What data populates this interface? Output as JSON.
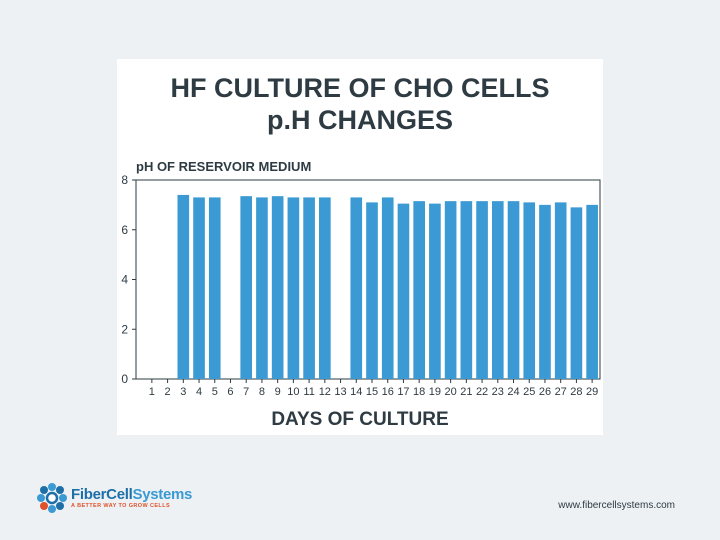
{
  "chart_data": {
    "type": "bar",
    "title_line1": "HF CULTURE OF CHO CELLS",
    "title_line2": "p.H CHANGES",
    "ylabel": "pH OF RESERVOIR MEDIUM",
    "xlabel": "DAYS OF CULTURE",
    "ylim": [
      0,
      8
    ],
    "yticks": [
      0,
      2,
      4,
      6,
      8
    ],
    "categories": [
      "1",
      "2",
      "3",
      "4",
      "5",
      "6",
      "7",
      "8",
      "9",
      "10",
      "11",
      "12",
      "13",
      "14",
      "15",
      "16",
      "17",
      "18",
      "19",
      "20",
      "21",
      "22",
      "23",
      "24",
      "25",
      "26",
      "27",
      "28",
      "29"
    ],
    "values": [
      0,
      0,
      7.4,
      7.3,
      7.3,
      0,
      7.35,
      7.3,
      7.35,
      7.3,
      7.3,
      7.3,
      0,
      7.3,
      7.1,
      7.3,
      7.05,
      7.15,
      7.05,
      7.15,
      7.15,
      7.15,
      7.15,
      7.15,
      7.1,
      7.0,
      7.1,
      6.9,
      7.0
    ],
    "bar_color": "#3b9ad3",
    "grid": false
  },
  "footer": {
    "brand_part1": "FiberCell",
    "brand_part2": "Systems",
    "tagline": "A BETTER WAY TO GROW CELLS",
    "url": "www.fibercellsystems.com"
  }
}
